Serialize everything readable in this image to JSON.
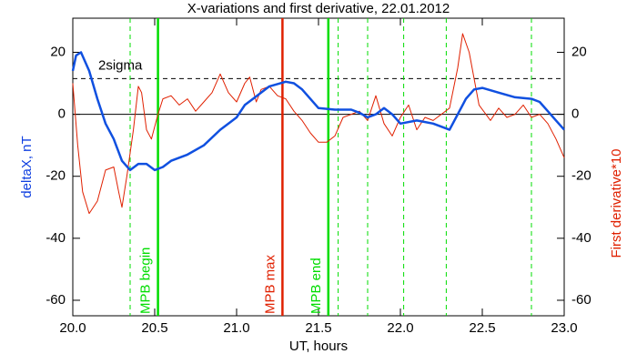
{
  "chart_data": {
    "type": "line",
    "title": "X-variations and first derivative, 22.01.2012",
    "xlabel": "UT, hours",
    "ylabel": "deltaX, nT",
    "ylabel_color": "#1040e0",
    "y2label": "First derivative*10",
    "y2label_color": "#e02000",
    "xlim": [
      20,
      23
    ],
    "xticks": [
      {
        "value": 20,
        "label": "20.0"
      },
      20.5,
      {
        "value": 21,
        "label": "21.0"
      },
      21.5,
      {
        "value": 22,
        "label": "22.0"
      },
      22.5,
      {
        "value": 23,
        "label": "23.0"
      }
    ],
    "ylim": [
      -65,
      31
    ],
    "yticks": [
      -60,
      -40,
      -20,
      0,
      20
    ],
    "y2lim": [
      -65,
      31
    ],
    "y2ticks": [
      -60,
      -40,
      -20,
      0,
      20
    ],
    "series": [
      {
        "color": "#1050e0",
        "x": [
          20.0,
          20.02,
          20.05,
          20.1,
          20.15,
          20.2,
          20.25,
          20.3,
          20.35,
          20.4,
          20.45,
          20.5,
          20.55,
          20.6,
          20.7,
          20.8,
          20.9,
          21.0,
          21.05,
          21.1,
          21.15,
          21.2,
          21.3,
          21.35,
          21.4,
          21.45,
          21.5,
          21.6,
          21.7,
          21.75,
          21.8,
          21.85,
          21.9,
          21.95,
          22.0,
          22.1,
          22.2,
          22.3,
          22.35,
          22.4,
          22.45,
          22.5,
          22.6,
          22.7,
          22.8,
          22.85,
          22.9,
          22.95,
          23.0
        ],
        "values": [
          14,
          19,
          20,
          14,
          5,
          -3,
          -8,
          -15,
          -18,
          -16,
          -16,
          -18,
          -17,
          -15,
          -13,
          -10,
          -5,
          -1,
          3,
          5,
          7,
          9,
          10.5,
          10,
          8,
          5,
          2,
          1.5,
          1.5,
          0.5,
          -1,
          0,
          2,
          0,
          -3,
          -2,
          -3,
          -5,
          0,
          5,
          8,
          8.5,
          7,
          5.5,
          5,
          4,
          1,
          -2,
          -5
        ]
      },
      {
        "color": "#e02000",
        "axis": "y2",
        "x": [
          20.0,
          20.03,
          20.06,
          20.1,
          20.15,
          20.2,
          20.25,
          20.28,
          20.3,
          20.33,
          20.37,
          20.4,
          20.42,
          20.45,
          20.48,
          20.52,
          20.55,
          20.6,
          20.65,
          20.7,
          20.75,
          20.8,
          20.85,
          20.9,
          20.95,
          21.0,
          21.05,
          21.08,
          21.12,
          21.15,
          21.2,
          21.25,
          21.3,
          21.35,
          21.4,
          21.45,
          21.5,
          21.55,
          21.6,
          21.65,
          21.7,
          21.75,
          21.8,
          21.85,
          21.9,
          21.95,
          22.0,
          22.05,
          22.1,
          22.15,
          22.2,
          22.25,
          22.3,
          22.35,
          22.38,
          22.42,
          22.48,
          22.55,
          22.6,
          22.65,
          22.7,
          22.75,
          22.8,
          22.85,
          22.9,
          22.95,
          23.0
        ],
        "values": [
          10,
          -10,
          -25,
          -32,
          -28,
          -18,
          -17,
          -25,
          -30,
          -20,
          -5,
          9,
          7,
          -5,
          -8,
          0,
          5,
          6,
          3,
          5,
          1,
          4,
          7,
          13,
          7,
          4,
          10,
          12,
          4,
          8,
          9,
          6,
          5,
          1,
          -2,
          -6,
          -9,
          -9,
          -7,
          -1,
          0,
          1,
          -2,
          6,
          -3,
          -7,
          -1,
          3,
          -5,
          -1,
          -2,
          0,
          2,
          15,
          26,
          20,
          3,
          -2,
          2,
          -1,
          0,
          3,
          -1,
          0,
          -3,
          -8,
          -14
        ]
      }
    ],
    "hlines": [
      {
        "y": 11.5,
        "label": "2sigma",
        "style": "dashed",
        "color": "#000000"
      },
      {
        "y": 0,
        "style": "solid",
        "color": "#000000"
      }
    ],
    "vlines": [
      {
        "x": 20.35,
        "style": "dashed",
        "color": "#00dd00"
      },
      {
        "x": 20.52,
        "style": "solid",
        "color": "#00dd00",
        "label": "MPB begin"
      },
      {
        "x": 21.28,
        "style": "solid",
        "color": "#e02000",
        "label": "MPB max"
      },
      {
        "x": 21.56,
        "style": "solid",
        "color": "#00dd00",
        "label": "MPB end"
      },
      {
        "x": 21.62,
        "style": "dashed",
        "color": "#00dd00"
      },
      {
        "x": 21.8,
        "style": "dashed",
        "color": "#00dd00"
      },
      {
        "x": 22.02,
        "style": "dashed",
        "color": "#00dd00"
      },
      {
        "x": 22.28,
        "style": "dashed",
        "color": "#00dd00"
      },
      {
        "x": 22.8,
        "style": "dashed",
        "color": "#00dd00"
      }
    ]
  }
}
